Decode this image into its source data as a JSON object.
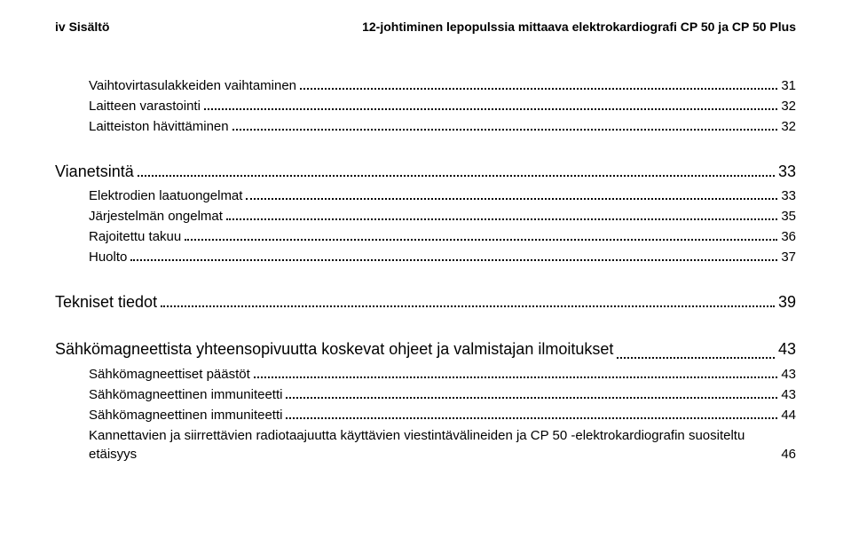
{
  "header": {
    "left": "iv    Sisältö",
    "right": "12-johtiminen lepopulssia mittaava elektrokardiografi CP 50 ja CP 50 Plus"
  },
  "toc": {
    "sections": [
      {
        "level": 2,
        "title": "Vaihtovirtasulakkeiden vaihtaminen",
        "page": "31"
      },
      {
        "level": 2,
        "title": "Laitteen varastointi",
        "page": "32"
      },
      {
        "level": 2,
        "title": "Laitteiston hävittäminen",
        "page": "32"
      },
      {
        "level": 1,
        "title": "Vianetsintä",
        "page": "33"
      },
      {
        "level": 2,
        "title": "Elektrodien laatuongelmat",
        "page": "33"
      },
      {
        "level": 2,
        "title": "Järjestelmän ongelmat",
        "page": "35"
      },
      {
        "level": 2,
        "title": "Rajoitettu takuu",
        "page": "36"
      },
      {
        "level": 2,
        "title": "Huolto",
        "page": "37"
      },
      {
        "level": 1,
        "title": "Tekniset tiedot",
        "page": "39"
      },
      {
        "level": 1,
        "title": "Sähkömagneettista yhteensopivuutta koskevat ohjeet ja valmistajan ilmoitukset",
        "page": "43",
        "multiline": true
      },
      {
        "level": 2,
        "title": "Sähkömagneettiset päästöt",
        "page": "43"
      },
      {
        "level": 2,
        "title": "Sähkömagneettinen immuniteetti",
        "page": "43"
      },
      {
        "level": 2,
        "title": "Sähkömagneettinen immuniteetti",
        "page": "44"
      },
      {
        "level": 2,
        "title": "Kannettavien ja siirrettävien radiotaajuutta käyttävien viestintävälineiden ja CP 50 -elektrokardiografin suositeltu etäisyys",
        "page": "46",
        "multiline": true
      }
    ]
  }
}
